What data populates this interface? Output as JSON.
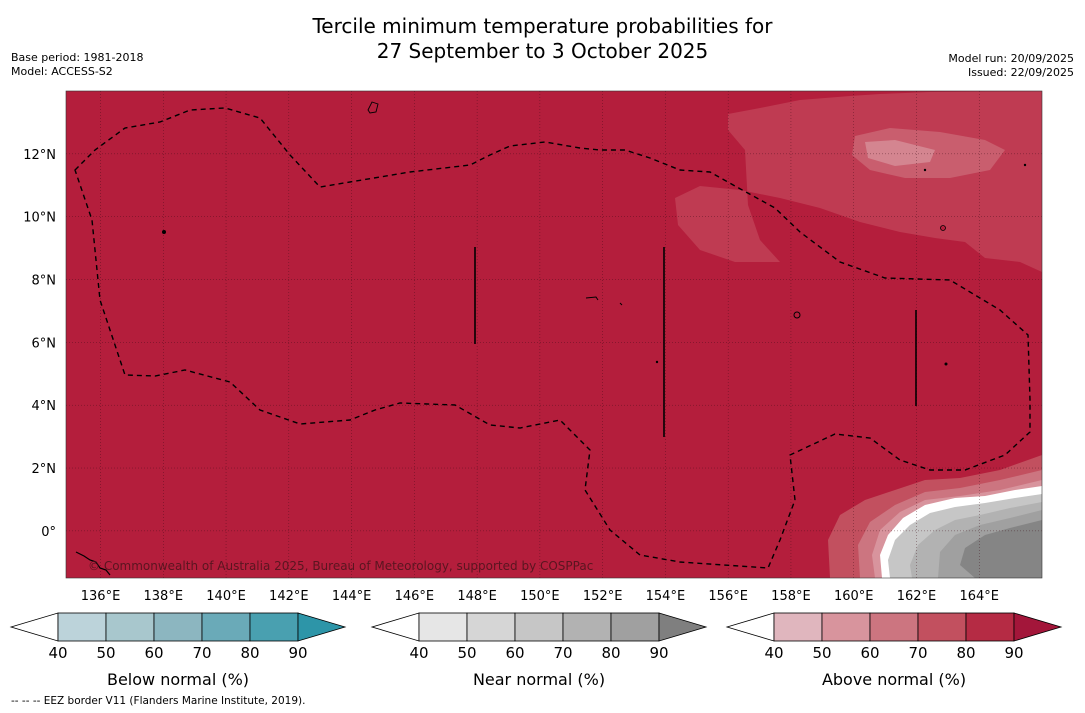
{
  "title": {
    "line1": "Tercile minimum temperature probabilities for",
    "line2": "27 September to 3 October 2025"
  },
  "meta": {
    "base_period": "Base period: 1981-2018",
    "model": "Model: ACCESS-S2",
    "model_run": "Model run: 20/09/2025",
    "issued": "Issued: 22/09/2025"
  },
  "map": {
    "background_color": "#b41e3c",
    "lon_labels": [
      "136°E",
      "138°E",
      "140°E",
      "142°E",
      "144°E",
      "146°E",
      "148°E",
      "150°E",
      "152°E",
      "154°E",
      "156°E",
      "158°E",
      "160°E",
      "162°E",
      "164°E"
    ],
    "lat_labels": [
      "12°N",
      "10°N",
      "8°N",
      "6°N",
      "4°N",
      "2°N",
      "0°"
    ],
    "copyright": "© Commonwealth of Australia 2025, Bureau of Meteorology, supported by COSPPac"
  },
  "colorbars": [
    {
      "name": "below-normal",
      "label": "Below normal (%)",
      "ticks": [
        "40",
        "50",
        "60",
        "70",
        "80",
        "90"
      ],
      "colors": [
        "#ffffff",
        "#bcd3da",
        "#a8c7cd",
        "#8cb6c0",
        "#6aaab8",
        "#49a0b0",
        "#2d95a8"
      ]
    },
    {
      "name": "near-normal",
      "label": "Near normal (%)",
      "ticks": [
        "40",
        "50",
        "60",
        "70",
        "80",
        "90"
      ],
      "colors": [
        "#ffffff",
        "#e6e6e6",
        "#d6d6d6",
        "#c6c6c6",
        "#b2b2b2",
        "#a0a0a0",
        "#7f7f7f"
      ]
    },
    {
      "name": "above-normal",
      "label": "Above normal (%)",
      "ticks": [
        "40",
        "50",
        "60",
        "70",
        "80",
        "90"
      ],
      "colors": [
        "#ffffff",
        "#e0b6be",
        "#d8949d",
        "#cc7580",
        "#c2505f",
        "#b52b44",
        "#a3163a"
      ]
    }
  ],
  "footnote": "--  --  -- EEZ border V11 (Flanders Marine Institute, 2019)."
}
